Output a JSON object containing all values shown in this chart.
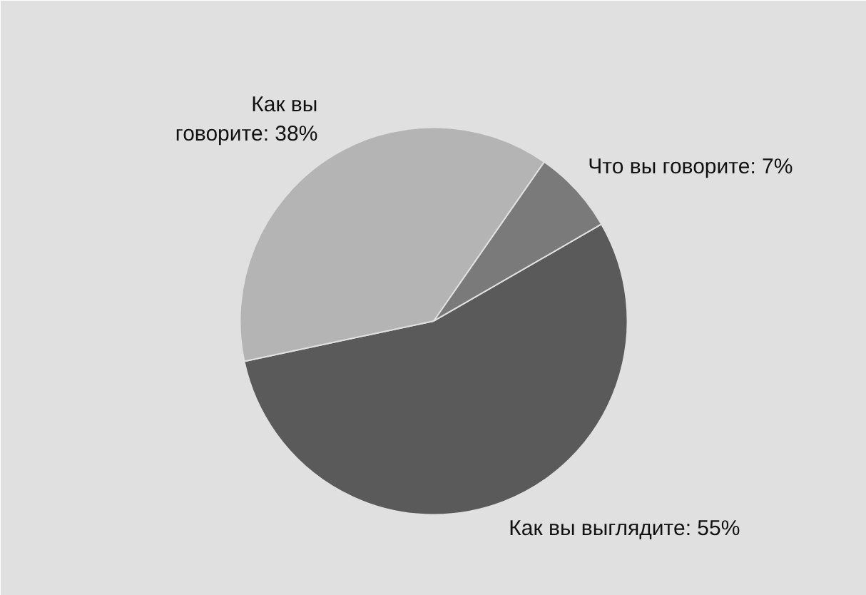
{
  "chart_data": {
    "type": "pie",
    "categories": [
      "Как вы выглядите: 55%",
      "Как вы\nговорите: 38%",
      "Что вы говорите: 7%"
    ],
    "values": [
      55,
      38,
      7
    ],
    "colors": [
      "#5a5a5a",
      "#b4b4b4",
      "#7a7a7a"
    ]
  }
}
